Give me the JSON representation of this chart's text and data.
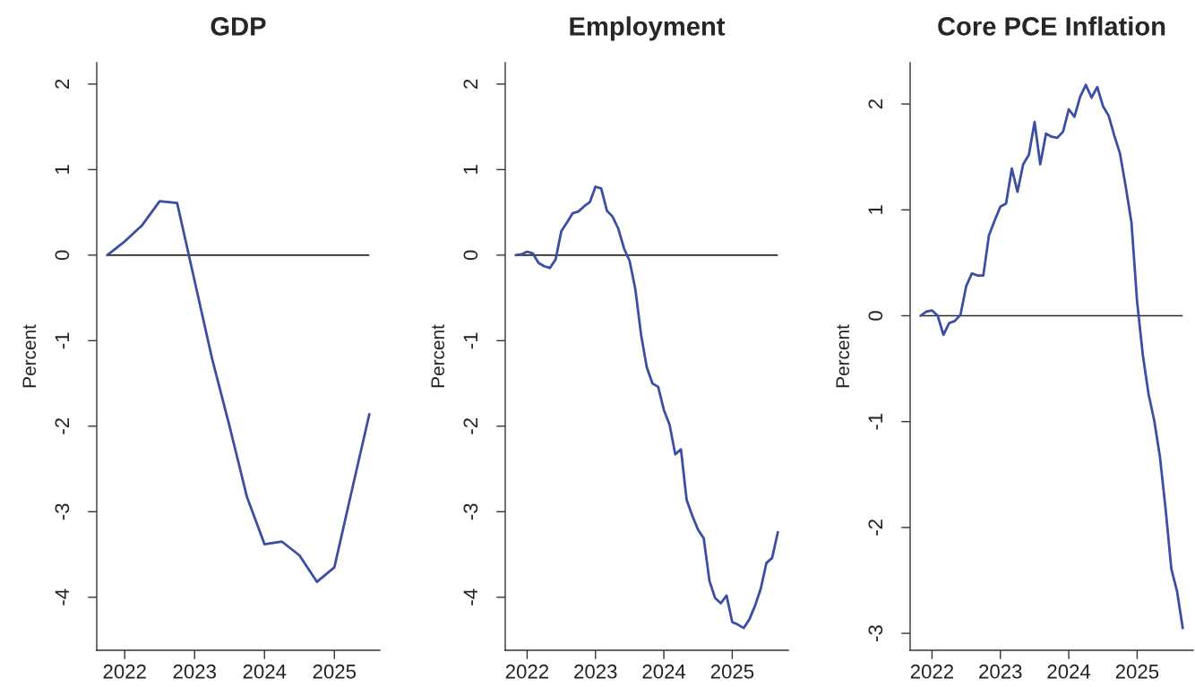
{
  "chart_data": [
    {
      "type": "line",
      "title": "GDP",
      "ylabel": "Percent",
      "x": [
        2021.75,
        2022,
        2022.25,
        2022.5,
        2022.75,
        2023,
        2023.25,
        2023.5,
        2023.75,
        2024,
        2024.25,
        2024.5,
        2024.75,
        2025,
        2025.25,
        2025.5
      ],
      "series": [
        {
          "color": "#3b4ea3",
          "values": [
            0,
            0.16,
            0.35,
            0.63,
            0.61,
            -0.3,
            -1.21,
            -2.0,
            -2.83,
            -3.38,
            -3.35,
            -3.51,
            -3.82,
            -3.65,
            -2.75,
            -1.86
          ]
        }
      ],
      "xlim": [
        2021.6,
        2025.65
      ],
      "ylim": [
        -4.62,
        2.25
      ],
      "xticks": [
        2022,
        2023,
        2024,
        2025
      ],
      "yticks": [
        -4,
        -3,
        -2,
        -1,
        0,
        1,
        2
      ],
      "ref_lines": [
        {
          "axis": "y",
          "value": 0,
          "color": "#2b2b2b"
        }
      ]
    },
    {
      "type": "line",
      "title": "Employment",
      "ylabel": "Percent",
      "x": [
        2021.833,
        2021.917,
        2022,
        2022.083,
        2022.167,
        2022.25,
        2022.333,
        2022.417,
        2022.5,
        2022.583,
        2022.667,
        2022.75,
        2022.833,
        2022.917,
        2023,
        2023.083,
        2023.167,
        2023.25,
        2023.333,
        2023.417,
        2023.5,
        2023.583,
        2023.667,
        2023.75,
        2023.833,
        2023.917,
        2024,
        2024.083,
        2024.167,
        2024.25,
        2024.333,
        2024.417,
        2024.5,
        2024.583,
        2024.667,
        2024.75,
        2024.833,
        2024.917,
        2025,
        2025.083,
        2025.167,
        2025.25,
        2025.333,
        2025.417,
        2025.5,
        2025.583,
        2025.667
      ],
      "series": [
        {
          "color": "#3b4ea3",
          "values": [
            0,
            0.01,
            0.04,
            0.02,
            -0.09,
            -0.13,
            -0.15,
            -0.05,
            0.28,
            0.38,
            0.49,
            0.51,
            0.57,
            0.62,
            0.8,
            0.78,
            0.52,
            0.45,
            0.31,
            0.08,
            -0.07,
            -0.4,
            -0.93,
            -1.31,
            -1.5,
            -1.54,
            -1.81,
            -1.98,
            -2.33,
            -2.27,
            -2.86,
            -3.05,
            -3.21,
            -3.31,
            -3.81,
            -4.01,
            -4.07,
            -3.98,
            -4.29,
            -4.32,
            -4.36,
            -4.26,
            -4.1,
            -3.9,
            -3.6,
            -3.54,
            -3.24
          ]
        }
      ],
      "xlim": [
        2021.68,
        2025.82
      ],
      "ylim": [
        -4.62,
        2.25
      ],
      "xticks": [
        2022,
        2023,
        2024,
        2025
      ],
      "yticks": [
        -4,
        -3,
        -2,
        -1,
        0,
        1,
        2
      ],
      "ref_lines": [
        {
          "axis": "y",
          "value": 0,
          "color": "#2b2b2b"
        }
      ]
    },
    {
      "type": "line",
      "title": "Core PCE Inflation",
      "ylabel": "Percent",
      "x": [
        2021.833,
        2021.917,
        2022,
        2022.083,
        2022.167,
        2022.25,
        2022.333,
        2022.417,
        2022.5,
        2022.583,
        2022.667,
        2022.75,
        2022.833,
        2022.917,
        2023,
        2023.083,
        2023.167,
        2023.25,
        2023.333,
        2023.417,
        2023.5,
        2023.583,
        2023.667,
        2023.75,
        2023.833,
        2023.917,
        2024,
        2024.083,
        2024.167,
        2024.25,
        2024.333,
        2024.417,
        2024.5,
        2024.583,
        2024.667,
        2024.75,
        2024.833,
        2024.917,
        2025,
        2025.083,
        2025.167,
        2025.25,
        2025.333,
        2025.417,
        2025.5,
        2025.583,
        2025.667
      ],
      "series": [
        {
          "color": "#3b4ea3",
          "values": [
            0,
            0.04,
            0.05,
            0.0,
            -0.18,
            -0.07,
            -0.05,
            0.01,
            0.28,
            0.4,
            0.38,
            0.38,
            0.76,
            0.9,
            1.03,
            1.06,
            1.39,
            1.17,
            1.43,
            1.52,
            1.83,
            1.43,
            1.72,
            1.69,
            1.68,
            1.74,
            1.95,
            1.88,
            2.07,
            2.18,
            2.06,
            2.16,
            1.98,
            1.89,
            1.7,
            1.53,
            1.22,
            0.88,
            0.13,
            -0.37,
            -0.74,
            -0.99,
            -1.33,
            -1.83,
            -2.39,
            -2.6,
            -2.95
          ]
        }
      ],
      "xlim": [
        2021.68,
        2025.82
      ],
      "ylim": [
        -3.16,
        2.39
      ],
      "xticks": [
        2022,
        2023,
        2024,
        2025
      ],
      "yticks": [
        -3,
        -2,
        -1,
        0,
        1,
        2
      ],
      "ref_lines": [
        {
          "axis": "y",
          "value": 0,
          "color": "#2b2b2b"
        }
      ]
    }
  ]
}
